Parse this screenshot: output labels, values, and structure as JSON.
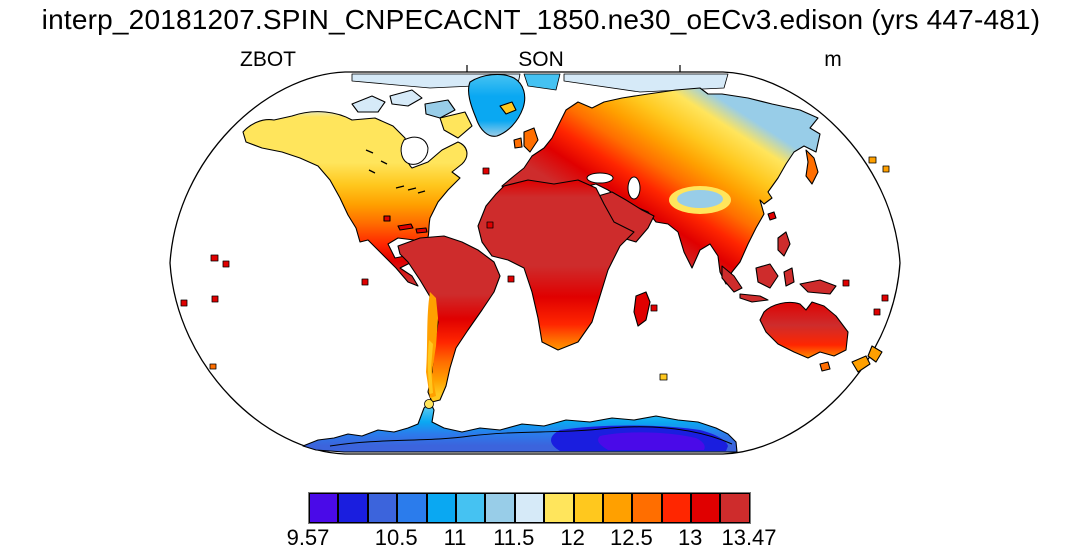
{
  "header": {
    "title": "interp_20181207.SPIN_CNPECACNT_1850.ne30_oECv3.edison (yrs 447-481)"
  },
  "map_header": {
    "variable": "ZBOT",
    "season": "SON",
    "units": "m"
  },
  "chart_data": {
    "type": "heatmap",
    "title": "interp_20181207.SPIN_CNPECACNT_1850.ne30_oECv3.edison (yrs 447-481)",
    "variable": "ZBOT",
    "season": "SON",
    "units": "m",
    "projection": "robinson",
    "value_range": [
      9.57,
      13.47
    ],
    "legend_position": "bottom",
    "grid": false,
    "colorbar": {
      "levels": [
        9.57,
        10,
        10.25,
        10.5,
        10.75,
        11,
        11.25,
        11.5,
        11.75,
        12,
        12.25,
        12.5,
        12.75,
        13,
        13.25,
        13.47
      ],
      "tick_labels": [
        "9.57",
        "10.5",
        "11",
        "11.5",
        "12",
        "12.5",
        "13",
        "13.47"
      ],
      "tick_edge_indices": [
        0,
        3,
        5,
        7,
        9,
        11,
        13,
        15
      ],
      "colors": [
        "#4A0AE8",
        "#1A1EDF",
        "#3C64DC",
        "#2B7CEC",
        "#0AA8F2",
        "#45C2F2",
        "#98CDE8",
        "#D6EAF8",
        "#FFE55C",
        "#FFC81E",
        "#FFA000",
        "#FF6E00",
        "#FF2600",
        "#E00000",
        "#CE2C2C"
      ]
    },
    "map_colors": {
      "ocean": "#ffffff",
      "coastline": "#000000",
      "outline": "#000000"
    },
    "region_values": [
      {
        "region": "East Antarctic interior (map minimum)",
        "approx_value_m": "9.6-10.0"
      },
      {
        "region": "Antarctic coast",
        "approx_value_m": "10.5-11.0"
      },
      {
        "region": "Greenland ice sheet",
        "approx_value_m": "10.8-11.3"
      },
      {
        "region": "Arctic Siberia / Canadian Arctic islands",
        "approx_value_m": "11.3-11.8"
      },
      {
        "region": "Tibetan Plateau",
        "approx_value_m": "11.3-11.5"
      },
      {
        "region": "Canada / Scandinavia / NE Siberia",
        "approx_value_m": "11.8-12.5"
      },
      {
        "region": "United States / Europe / China / Patagonia",
        "approx_value_m": "12.3-13.0"
      },
      {
        "region": "Tropical land (Africa, Amazon, Arabia, India, SE Asia, N Australia)",
        "approx_value_m": "13.0-13.47"
      },
      {
        "region": "Ocean",
        "approx_value_m": "masked (white)"
      }
    ]
  }
}
